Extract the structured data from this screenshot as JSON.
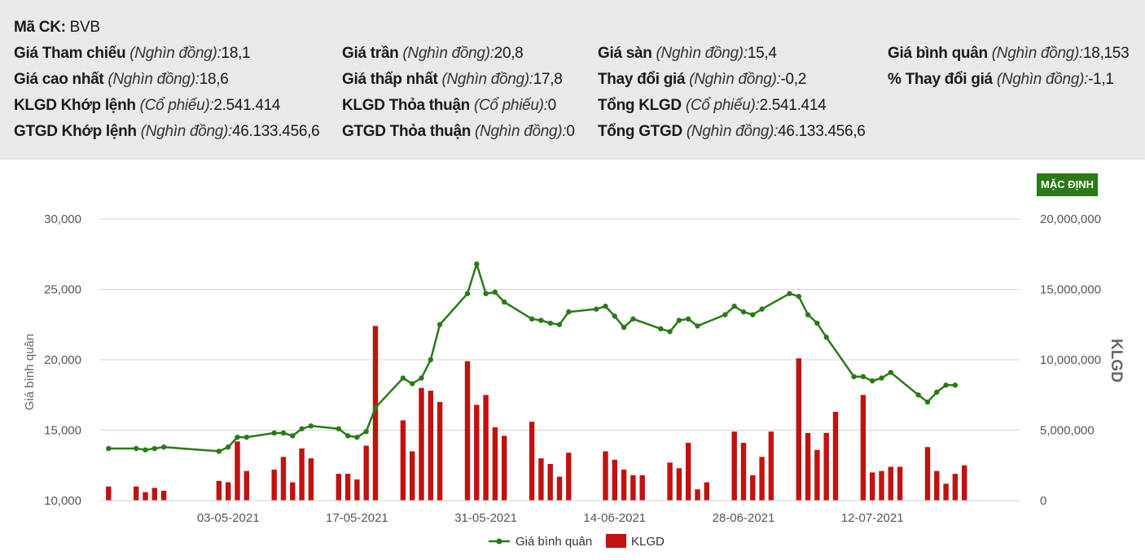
{
  "header": {
    "ticker": {
      "label": "Mã CK:",
      "unit": "",
      "value": "BVB"
    },
    "rows": [
      [
        {
          "label": "Giá Tham chiếu",
          "unit": "(Nghìn đồng):",
          "value": "18,1"
        },
        {
          "label": "Giá trần",
          "unit": "(Nghìn đồng):",
          "value": "20,8"
        },
        {
          "label": "Giá sàn",
          "unit": "(Nghìn đồng):",
          "value": "15,4"
        },
        {
          "label": "Giá bình quân",
          "unit": "(Nghìn đồng):",
          "value": "18,153"
        }
      ],
      [
        {
          "label": "Giá cao nhất",
          "unit": "(Nghìn đồng):",
          "value": "18,6"
        },
        {
          "label": "Giá thấp nhất",
          "unit": "(Nghìn đồng):",
          "value": "17,8"
        },
        {
          "label": "Thay đổi giá",
          "unit": "(Nghìn đồng):",
          "value": "-0,2"
        },
        {
          "label": "% Thay đổi giá",
          "unit": "(Nghìn đồng):",
          "value": "-1,1"
        }
      ],
      [
        {
          "label": "KLGD Khớp lệnh",
          "unit": "(Cổ phiếu):",
          "value": "2.541.414"
        },
        {
          "label": "KLGD Thỏa thuận",
          "unit": "(Cổ phiếu):",
          "value": "0"
        },
        {
          "label": "Tổng KLGD",
          "unit": "(Cổ phiếu):",
          "value": "2.541.414"
        }
      ],
      [
        {
          "label": "GTGD Khớp lệnh",
          "unit": "(Nghìn đồng):",
          "value": "46.133.456,6"
        },
        {
          "label": "GTGD Thỏa thuận",
          "unit": "(Nghìn đồng):",
          "value": "0"
        },
        {
          "label": "Tổng GTGD",
          "unit": "(Nghìn đồng):",
          "value": "46.133.456,6"
        }
      ]
    ]
  },
  "toolbar": {
    "default_label": "MẶC ĐỊNH"
  },
  "chart_data": {
    "type": "line+bar",
    "x_start_date": "2021-04-19",
    "x_end_date": "2021-07-28",
    "x_tick_labels": [
      "03-05-2021",
      "17-05-2021",
      "31-05-2021",
      "14-06-2021",
      "28-06-2021",
      "12-07-2021"
    ],
    "x_tick_dates": [
      "2021-05-03",
      "2021-05-17",
      "2021-05-31",
      "2021-06-14",
      "2021-06-28",
      "2021-07-12"
    ],
    "y_left": {
      "label": "Giá bình quân",
      "min": 10000,
      "max": 30000,
      "ticks": [
        10000,
        15000,
        20000,
        25000,
        30000
      ],
      "tick_labels": [
        "10,000",
        "15,000",
        "20,000",
        "25,000",
        "30,000"
      ]
    },
    "y_right": {
      "label": "KLGD",
      "min": 0,
      "max": 20000000,
      "ticks": [
        0,
        5000000,
        10000000,
        15000000,
        20000000
      ],
      "tick_labels": [
        "0",
        "5,000,000",
        "10,000,000",
        "15,000,000",
        "20,000,000"
      ]
    },
    "grid": true,
    "legend_position": "bottom-center",
    "series": [
      {
        "name": "Giá bình quân",
        "type": "line",
        "color": "#2a7a18",
        "points": [
          [
            "2021-04-20",
            13700
          ],
          [
            "2021-04-23",
            13700
          ],
          [
            "2021-04-24",
            13600
          ],
          [
            "2021-04-25",
            13700
          ],
          [
            "2021-04-26",
            13800
          ],
          [
            "2021-05-02",
            13500
          ],
          [
            "2021-05-03",
            13800
          ],
          [
            "2021-05-04",
            14500
          ],
          [
            "2021-05-05",
            14500
          ],
          [
            "2021-05-08",
            14800
          ],
          [
            "2021-05-09",
            14800
          ],
          [
            "2021-05-10",
            14600
          ],
          [
            "2021-05-11",
            15100
          ],
          [
            "2021-05-12",
            15300
          ],
          [
            "2021-05-15",
            15100
          ],
          [
            "2021-05-16",
            14600
          ],
          [
            "2021-05-17",
            14500
          ],
          [
            "2021-05-18",
            14900
          ],
          [
            "2021-05-19",
            16600
          ],
          [
            "2021-05-22",
            18700
          ],
          [
            "2021-05-23",
            18300
          ],
          [
            "2021-05-24",
            18700
          ],
          [
            "2021-05-25",
            20000
          ],
          [
            "2021-05-26",
            22500
          ],
          [
            "2021-05-29",
            24700
          ],
          [
            "2021-05-30",
            26800
          ],
          [
            "2021-05-31",
            24700
          ],
          [
            "2021-06-01",
            24800
          ],
          [
            "2021-06-02",
            24100
          ],
          [
            "2021-06-05",
            22900
          ],
          [
            "2021-06-06",
            22800
          ],
          [
            "2021-06-07",
            22600
          ],
          [
            "2021-06-08",
            22500
          ],
          [
            "2021-06-09",
            23400
          ],
          [
            "2021-06-12",
            23600
          ],
          [
            "2021-06-13",
            23800
          ],
          [
            "2021-06-14",
            23100
          ],
          [
            "2021-06-15",
            22300
          ],
          [
            "2021-06-16",
            22900
          ],
          [
            "2021-06-19",
            22200
          ],
          [
            "2021-06-20",
            22000
          ],
          [
            "2021-06-21",
            22800
          ],
          [
            "2021-06-22",
            22900
          ],
          [
            "2021-06-23",
            22400
          ],
          [
            "2021-06-26",
            23200
          ],
          [
            "2021-06-27",
            23800
          ],
          [
            "2021-06-28",
            23400
          ],
          [
            "2021-06-29",
            23200
          ],
          [
            "2021-06-30",
            23600
          ],
          [
            "2021-07-03",
            24700
          ],
          [
            "2021-07-04",
            24500
          ],
          [
            "2021-07-05",
            23200
          ],
          [
            "2021-07-06",
            22600
          ],
          [
            "2021-07-07",
            21600
          ],
          [
            "2021-07-10",
            18800
          ],
          [
            "2021-07-11",
            18800
          ],
          [
            "2021-07-12",
            18500
          ],
          [
            "2021-07-13",
            18700
          ],
          [
            "2021-07-14",
            19100
          ],
          [
            "2021-07-17",
            17500
          ],
          [
            "2021-07-18",
            17000
          ],
          [
            "2021-07-19",
            17700
          ],
          [
            "2021-07-20",
            18200
          ],
          [
            "2021-07-21",
            18200
          ]
        ]
      },
      {
        "name": "KLGD",
        "type": "bar",
        "color": "#c0120f",
        "points": [
          [
            "2021-04-20",
            1000000
          ],
          [
            "2021-04-23",
            1000000
          ],
          [
            "2021-04-24",
            600000
          ],
          [
            "2021-04-25",
            900000
          ],
          [
            "2021-04-26",
            700000
          ],
          [
            "2021-05-02",
            1400000
          ],
          [
            "2021-05-03",
            1300000
          ],
          [
            "2021-05-04",
            4200000
          ],
          [
            "2021-05-05",
            2100000
          ],
          [
            "2021-05-08",
            2200000
          ],
          [
            "2021-05-09",
            3100000
          ],
          [
            "2021-05-10",
            1300000
          ],
          [
            "2021-05-11",
            3700000
          ],
          [
            "2021-05-12",
            3000000
          ],
          [
            "2021-05-15",
            1900000
          ],
          [
            "2021-05-16",
            1900000
          ],
          [
            "2021-05-17",
            1500000
          ],
          [
            "2021-05-18",
            3900000
          ],
          [
            "2021-05-19",
            12400000
          ],
          [
            "2021-05-22",
            5700000
          ],
          [
            "2021-05-23",
            3500000
          ],
          [
            "2021-05-24",
            8000000
          ],
          [
            "2021-05-25",
            7800000
          ],
          [
            "2021-05-26",
            7000000
          ],
          [
            "2021-05-29",
            9900000
          ],
          [
            "2021-05-30",
            6800000
          ],
          [
            "2021-05-31",
            7500000
          ],
          [
            "2021-06-01",
            5200000
          ],
          [
            "2021-06-02",
            4600000
          ],
          [
            "2021-06-05",
            5600000
          ],
          [
            "2021-06-06",
            3000000
          ],
          [
            "2021-06-07",
            2600000
          ],
          [
            "2021-06-08",
            1700000
          ],
          [
            "2021-06-09",
            3400000
          ],
          [
            "2021-06-13",
            3500000
          ],
          [
            "2021-06-14",
            2900000
          ],
          [
            "2021-06-15",
            2200000
          ],
          [
            "2021-06-16",
            1800000
          ],
          [
            "2021-06-17",
            1800000
          ],
          [
            "2021-06-20",
            2700000
          ],
          [
            "2021-06-21",
            2300000
          ],
          [
            "2021-06-22",
            4100000
          ],
          [
            "2021-06-23",
            800000
          ],
          [
            "2021-06-24",
            1300000
          ],
          [
            "2021-06-27",
            4900000
          ],
          [
            "2021-06-28",
            4100000
          ],
          [
            "2021-06-29",
            1800000
          ],
          [
            "2021-06-30",
            3100000
          ],
          [
            "2021-07-01",
            4900000
          ],
          [
            "2021-07-04",
            10100000
          ],
          [
            "2021-07-05",
            4800000
          ],
          [
            "2021-07-06",
            3600000
          ],
          [
            "2021-07-07",
            4800000
          ],
          [
            "2021-07-08",
            6300000
          ],
          [
            "2021-07-11",
            7500000
          ],
          [
            "2021-07-12",
            2000000
          ],
          [
            "2021-07-13",
            2100000
          ],
          [
            "2021-07-14",
            2400000
          ],
          [
            "2021-07-15",
            2400000
          ],
          [
            "2021-07-18",
            3800000
          ],
          [
            "2021-07-19",
            2100000
          ],
          [
            "2021-07-20",
            1200000
          ],
          [
            "2021-07-21",
            1900000
          ],
          [
            "2021-07-22",
            2500000
          ]
        ]
      }
    ]
  }
}
